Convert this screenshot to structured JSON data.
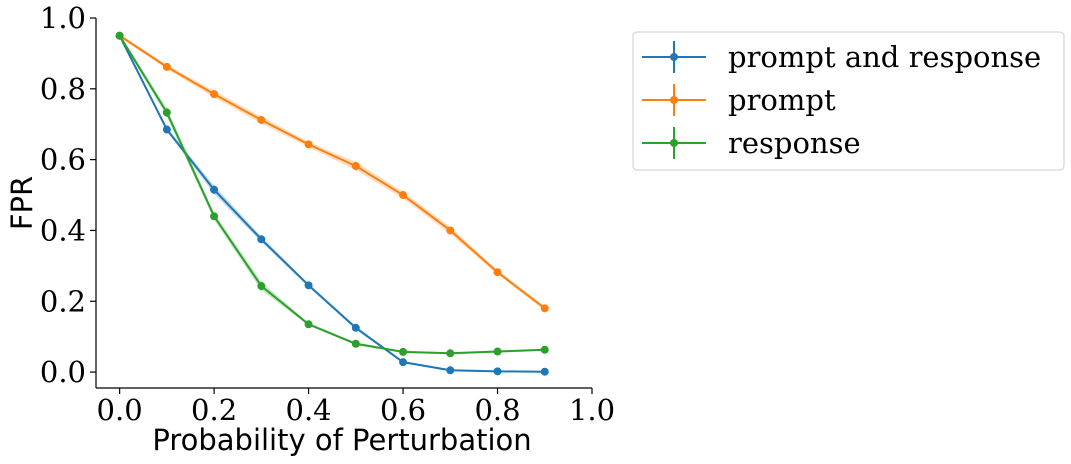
{
  "chart_data": {
    "type": "line",
    "title": "",
    "xlabel": "Probability of Perturbation",
    "ylabel": "FPR",
    "xlim": [
      -0.05,
      1.0
    ],
    "ylim": [
      -0.045,
      1.0
    ],
    "x_ticks": [
      0.0,
      0.2,
      0.4,
      0.6,
      0.8,
      1.0
    ],
    "x_tick_labels": [
      "0.0",
      "0.2",
      "0.4",
      "0.6",
      "0.8",
      "1.0"
    ],
    "y_ticks": [
      0.0,
      0.2,
      0.4,
      0.6,
      0.8,
      1.0
    ],
    "y_tick_labels": [
      "0.0",
      "0.2",
      "0.4",
      "0.6",
      "0.8",
      "1.0"
    ],
    "grid": false,
    "legend_position": "outside-top-right",
    "x": [
      0.0,
      0.1,
      0.2,
      0.3,
      0.4,
      0.5,
      0.6,
      0.7,
      0.8,
      0.9
    ],
    "series": [
      {
        "name": "prompt and response",
        "color": "#1f77b4",
        "values": [
          0.95,
          0.685,
          0.515,
          0.375,
          0.245,
          0.125,
          0.028,
          0.005,
          0.002,
          0.001
        ],
        "band": [
          0.005,
          0.005,
          0.012,
          0.008,
          0.005,
          0.005,
          0.003,
          0.003,
          0.002,
          0.002
        ]
      },
      {
        "name": "prompt",
        "color": "#ff7f0e",
        "values": [
          0.95,
          0.862,
          0.785,
          0.712,
          0.643,
          0.582,
          0.5,
          0.4,
          0.282,
          0.18
        ],
        "band": [
          0.005,
          0.006,
          0.01,
          0.01,
          0.008,
          0.012,
          0.01,
          0.01,
          0.006,
          0.006
        ]
      },
      {
        "name": "response",
        "color": "#2ca02c",
        "values": [
          0.95,
          0.733,
          0.44,
          0.243,
          0.135,
          0.08,
          0.057,
          0.053,
          0.058,
          0.063
        ],
        "band": [
          0.005,
          0.012,
          0.01,
          0.012,
          0.004,
          0.004,
          0.003,
          0.003,
          0.003,
          0.003
        ]
      }
    ]
  }
}
